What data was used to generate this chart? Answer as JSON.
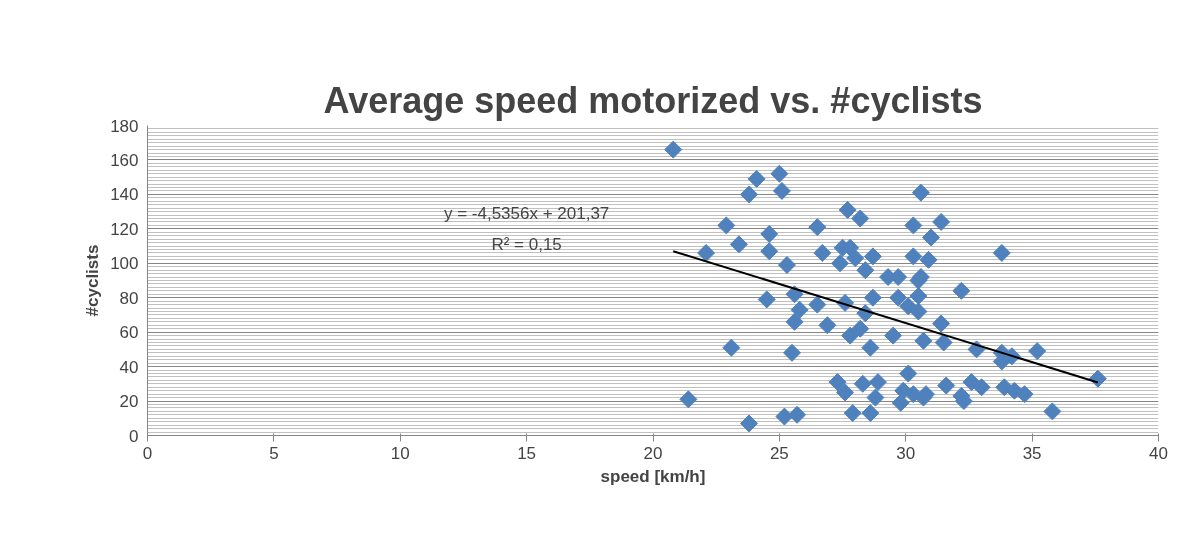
{
  "chart_data": {
    "type": "scatter",
    "title": "Average speed motorized vs. #cyclists",
    "xlabel": "speed [km/h]",
    "ylabel": "#cyclists",
    "xlim": [
      0,
      40
    ],
    "xticks": [
      0,
      5,
      10,
      15,
      20,
      25,
      30,
      35,
      40
    ],
    "ylim": [
      0,
      180
    ],
    "yticks": [
      0,
      20,
      40,
      60,
      80,
      100,
      120,
      140,
      160,
      180
    ],
    "grid": "y",
    "annotations": [
      "y = -4,5356x + 201,37",
      "R² = 0,15"
    ],
    "series": [
      {
        "color": "#4f81bd",
        "marker": "diamond",
        "x": [
          20.8,
          24.1,
          25.0,
          23.8,
          25.1,
          27.7,
          28.2,
          22.9,
          24.6,
          26.5,
          23.4,
          24.6,
          22.1,
          25.3,
          26.7,
          27.5,
          27.8,
          27.4,
          28.0,
          28.7,
          28.4,
          29.3,
          30.6,
          31.4,
          30.3,
          31.0,
          30.3,
          30.9,
          33.8,
          30.6,
          29.7,
          24.5,
          25.6,
          25.8,
          25.6,
          26.5,
          27.6,
          28.7,
          28.4,
          26.9,
          27.8,
          28.2,
          29.5,
          28.6,
          23.1,
          25.5,
          21.4,
          27.3,
          27.6,
          28.3,
          28.9,
          28.8,
          27.9,
          28.6,
          25.2,
          25.7,
          23.8,
          29.7,
          30.1,
          30.5,
          30.5,
          30.5,
          32.2,
          31.4,
          30.7,
          31.5,
          32.8,
          33.8,
          33.8,
          34.2,
          35.2,
          37.6,
          30.1,
          29.9,
          30.3,
          30.8,
          29.8,
          30.7,
          31.6,
          32.2,
          32.3,
          32.6,
          33.0,
          33.9,
          34.3,
          34.7,
          35.8
        ],
        "values": [
          166,
          149,
          152,
          140,
          142,
          131,
          126,
          122,
          117,
          121,
          111,
          107,
          106,
          99,
          106,
          109,
          109,
          100,
          103,
          104,
          96,
          92,
          141,
          124,
          122,
          115,
          104,
          102,
          106,
          92,
          92,
          79,
          82,
          73,
          66,
          76,
          77,
          80,
          71,
          64,
          58,
          62,
          58,
          51,
          51,
          48,
          21,
          31,
          25,
          30,
          31,
          22,
          13,
          13,
          11,
          12,
          7,
          80,
          75,
          81,
          72,
          90,
          84,
          65,
          55,
          54,
          50,
          48,
          43,
          46,
          49,
          33,
          36,
          26,
          24,
          24,
          19,
          22,
          29,
          23,
          20,
          31,
          28,
          28,
          26,
          24,
          14
        ]
      },
      {
        "type": "line",
        "color": "#000000",
        "x": [
          20.8,
          37.6
        ],
        "values": [
          107.0,
          30.8
        ]
      }
    ]
  }
}
